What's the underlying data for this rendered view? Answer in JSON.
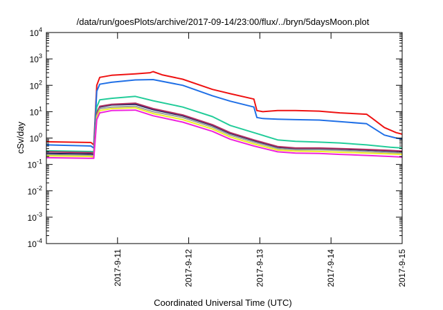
{
  "chart_data": {
    "type": "line",
    "title": "/data/run/goesPlots/archive/2017-09-14/23:00/flux/../bryn/5daysMoon.plot",
    "xlabel": "Coordinated Universal Time (UTC)",
    "ylabel": "cSv/day",
    "xlim": [
      "2017-09-10",
      "2017-09-15"
    ],
    "x_ticks": [
      "2017-9-11",
      "2017-9-12",
      "2017-9-13",
      "2017-9-14",
      "2017-9-15"
    ],
    "y_scale": "log",
    "ylim": [
      0.0001,
      10000
    ],
    "y_ticks": [
      {
        "base": "10",
        "exp": "-4"
      },
      {
        "base": "10",
        "exp": "-3"
      },
      {
        "base": "10",
        "exp": "-2"
      },
      {
        "base": "10",
        "exp": "-1"
      },
      {
        "base": "10",
        "exp": "0"
      },
      {
        "base": "10",
        "exp": "1"
      },
      {
        "base": "10",
        "exp": "2"
      },
      {
        "base": "10",
        "exp": "3"
      },
      {
        "base": "10",
        "exp": "4"
      }
    ],
    "grid": false,
    "legend": false,
    "series": [
      {
        "color": "#ee1111",
        "x": [
          "2017-09-10 00:00",
          "2017-09-10 15:00",
          "2017-09-10 16:00",
          "2017-09-10 17:00",
          "2017-09-10 18:00",
          "2017-09-10 22:00",
          "2017-09-11 06:00",
          "2017-09-11 11:00",
          "2017-09-11 12:00",
          "2017-09-11 15:00",
          "2017-09-11 22:00",
          "2017-09-12 08:00",
          "2017-09-12 14:00",
          "2017-09-12 22:00",
          "2017-09-12 23:00",
          "2017-09-13 01:00",
          "2017-09-13 06:00",
          "2017-09-13 12:00",
          "2017-09-13 20:00",
          "2017-09-14 03:00",
          "2017-09-14 12:00",
          "2017-09-14 14:00",
          "2017-09-14 18:00",
          "2017-09-14 22:00",
          "2017-09-15 00:00"
        ],
        "values": [
          0.72,
          0.68,
          0.55,
          100,
          200,
          240,
          270,
          300,
          330,
          250,
          170,
          70,
          48,
          30,
          11,
          10,
          11,
          11,
          10.5,
          9,
          8,
          5.5,
          2.5,
          1.6,
          1.4
        ]
      },
      {
        "color": "#1f6fe6",
        "x": [
          "2017-09-10 00:00",
          "2017-09-10 15:00",
          "2017-09-10 16:00",
          "2017-09-10 17:00",
          "2017-09-10 18:00",
          "2017-09-10 22:00",
          "2017-09-11 06:00",
          "2017-09-11 12:00",
          "2017-09-11 22:00",
          "2017-09-12 08:00",
          "2017-09-12 14:00",
          "2017-09-12 22:00",
          "2017-09-12 23:00",
          "2017-09-13 01:00",
          "2017-09-13 06:00",
          "2017-09-13 12:00",
          "2017-09-13 20:00",
          "2017-09-14 03:00",
          "2017-09-14 12:00",
          "2017-09-14 14:00",
          "2017-09-14 18:00",
          "2017-09-14 22:00",
          "2017-09-15 00:00"
        ],
        "values": [
          0.55,
          0.5,
          0.42,
          60,
          110,
          130,
          160,
          165,
          100,
          40,
          25,
          15,
          6,
          5.5,
          5.2,
          5,
          4.8,
          4.2,
          3.5,
          2.5,
          1.3,
          1.0,
          0.9
        ]
      },
      {
        "color": "#22cc99",
        "x": [
          "2017-09-10 00:00",
          "2017-09-10 15:00",
          "2017-09-10 16:00",
          "2017-09-10 17:00",
          "2017-09-10 18:00",
          "2017-09-10 22:00",
          "2017-09-11 06:00",
          "2017-09-11 12:00",
          "2017-09-11 22:00",
          "2017-09-12 08:00",
          "2017-09-12 14:00",
          "2017-09-12 22:00",
          "2017-09-13 06:00",
          "2017-09-13 12:00",
          "2017-09-13 20:00",
          "2017-09-14 03:00",
          "2017-09-14 12:00",
          "2017-09-14 20:00",
          "2017-09-15 00:00"
        ],
        "values": [
          0.33,
          0.31,
          0.3,
          15,
          28,
          32,
          38,
          26,
          15,
          6.5,
          3,
          1.6,
          0.85,
          0.75,
          0.7,
          0.65,
          0.55,
          0.45,
          0.42
        ]
      },
      {
        "color": "#202060",
        "x": [
          "2017-09-10 00:00",
          "2017-09-10 15:00",
          "2017-09-10 16:00",
          "2017-09-10 17:00",
          "2017-09-10 18:00",
          "2017-09-10 22:00",
          "2017-09-11 06:00",
          "2017-09-11 12:00",
          "2017-09-11 22:00",
          "2017-09-12 08:00",
          "2017-09-12 14:00",
          "2017-09-12 22:00",
          "2017-09-13 06:00",
          "2017-09-13 12:00",
          "2017-09-13 20:00",
          "2017-09-14 03:00",
          "2017-09-14 12:00",
          "2017-09-14 20:00",
          "2017-09-15 00:00"
        ],
        "values": [
          0.26,
          0.25,
          0.24,
          8,
          15,
          18,
          19,
          12,
          7,
          3,
          1.5,
          0.8,
          0.45,
          0.4,
          0.4,
          0.38,
          0.35,
          0.32,
          0.3
        ]
      },
      {
        "color": "#b03060",
        "x": [
          "2017-09-10 00:00",
          "2017-09-10 15:00",
          "2017-09-10 16:00",
          "2017-09-10 17:00",
          "2017-09-10 18:00",
          "2017-09-10 22:00",
          "2017-09-11 06:00",
          "2017-09-11 12:00",
          "2017-09-11 22:00",
          "2017-09-12 08:00",
          "2017-09-12 14:00",
          "2017-09-12 22:00",
          "2017-09-13 06:00",
          "2017-09-13 12:00",
          "2017-09-13 20:00",
          "2017-09-14 03:00",
          "2017-09-14 12:00",
          "2017-09-14 20:00",
          "2017-09-15 00:00"
        ],
        "values": [
          0.3,
          0.28,
          0.27,
          9,
          16,
          19,
          21,
          13,
          7.5,
          3.2,
          1.6,
          0.85,
          0.48,
          0.42,
          0.42,
          0.4,
          0.37,
          0.34,
          0.32
        ]
      },
      {
        "color": "#9aa0a0",
        "x": [
          "2017-09-10 00:00",
          "2017-09-10 15:00",
          "2017-09-10 16:00",
          "2017-09-10 17:00",
          "2017-09-10 18:00",
          "2017-09-10 22:00",
          "2017-09-11 06:00",
          "2017-09-11 12:00",
          "2017-09-11 22:00",
          "2017-09-12 08:00",
          "2017-09-12 14:00",
          "2017-09-12 22:00",
          "2017-09-13 06:00",
          "2017-09-13 12:00",
          "2017-09-13 20:00",
          "2017-09-14 03:00",
          "2017-09-14 12:00",
          "2017-09-14 20:00",
          "2017-09-15 00:00"
        ],
        "values": [
          0.23,
          0.22,
          0.21,
          7,
          13,
          15,
          16,
          10,
          6,
          2.6,
          1.3,
          0.7,
          0.4,
          0.36,
          0.36,
          0.34,
          0.31,
          0.28,
          0.27
        ]
      },
      {
        "color": "#eeee22",
        "x": [
          "2017-09-10 00:00",
          "2017-09-10 15:00",
          "2017-09-10 16:00",
          "2017-09-10 17:00",
          "2017-09-10 18:00",
          "2017-09-10 22:00",
          "2017-09-11 06:00",
          "2017-09-11 12:00",
          "2017-09-11 22:00",
          "2017-09-12 08:00",
          "2017-09-12 14:00",
          "2017-09-12 22:00",
          "2017-09-13 06:00",
          "2017-09-13 12:00",
          "2017-09-13 20:00",
          "2017-09-14 03:00",
          "2017-09-14 12:00",
          "2017-09-14 20:00",
          "2017-09-15 00:00"
        ],
        "values": [
          0.21,
          0.2,
          0.19,
          6,
          11,
          13,
          14,
          8.5,
          5,
          2.2,
          1.1,
          0.6,
          0.35,
          0.32,
          0.31,
          0.29,
          0.27,
          0.25,
          0.24
        ]
      },
      {
        "color": "#ee22dd",
        "x": [
          "2017-09-10 00:00",
          "2017-09-10 15:00",
          "2017-09-10 16:00",
          "2017-09-10 17:00",
          "2017-09-10 18:00",
          "2017-09-10 22:00",
          "2017-09-11 06:00",
          "2017-09-11 12:00",
          "2017-09-11 22:00",
          "2017-09-12 08:00",
          "2017-09-12 14:00",
          "2017-09-12 22:00",
          "2017-09-13 06:00",
          "2017-09-13 12:00",
          "2017-09-13 20:00",
          "2017-09-14 03:00",
          "2017-09-14 12:00",
          "2017-09-14 20:00",
          "2017-09-15 00:00"
        ],
        "values": [
          0.18,
          0.17,
          0.17,
          5,
          9,
          11,
          11.5,
          7,
          4,
          1.8,
          0.9,
          0.5,
          0.3,
          0.27,
          0.26,
          0.24,
          0.22,
          0.2,
          0.19
        ]
      }
    ]
  }
}
